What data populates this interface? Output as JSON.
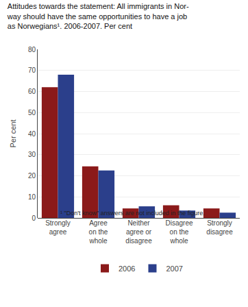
{
  "chart_data": {
    "type": "bar",
    "title": "Attitudes towards the statement: All immigrants in Nor-\nway should have the same opportunities to have a job\nas Norwegians¹. 2006-2007. Per cent",
    "ylabel": "Per cent",
    "categories": [
      "Strongly\nagree",
      "Agree\non the\nwhole",
      "Neither\nagree or\ndisagree",
      "Disagree\non the\nwhole",
      "Strongly\ndisagree"
    ],
    "series": [
      {
        "name": "2006",
        "color": "#8B1A1A",
        "values": [
          62,
          24.5,
          4.5,
          6,
          4.5
        ]
      },
      {
        "name": "2007",
        "color": "#2B3F8B",
        "values": [
          68,
          22.5,
          5.5,
          3.5,
          2.5
        ]
      }
    ],
    "ylim": [
      0,
      80
    ],
    "yticks": [
      0,
      10,
      20,
      30,
      40,
      50,
      60,
      70,
      80
    ],
    "grid": true,
    "legend": "bottom",
    "annotations": [
      "¹ \"Don't know\" answers are not included in the figure."
    ]
  }
}
